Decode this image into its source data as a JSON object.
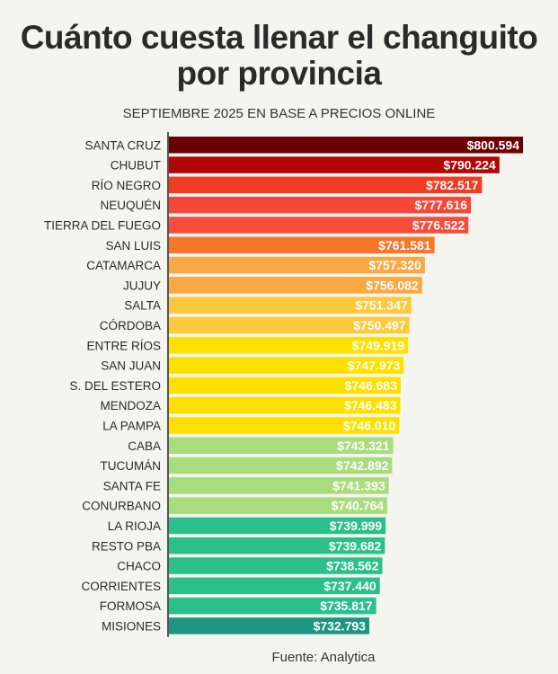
{
  "chart_data": {
    "type": "bar",
    "orientation": "horizontal",
    "title": "Cuánto cuesta llenar el changuito por provincia",
    "subtitle": "SEPTIEMBRE 2025 EN BASE A PRECIOS ONLINE",
    "source": "Fuente: Analytica",
    "categories": [
      "SANTA CRUZ",
      "CHUBUT",
      "RÍO NEGRO",
      "NEUQUÉN",
      "TIERRA DEL FUEGO",
      "SAN LUIS",
      "CATAMARCA",
      "JUJUY",
      "SALTA",
      "CÓRDOBA",
      "ENTRE RÍOS",
      "SAN JUAN",
      "S. DEL ESTERO",
      "MENDOZA",
      "LA PAMPA",
      "CABA",
      "TUCUMÁN",
      "SANTA FE",
      "CONURBANO",
      "LA RIOJA",
      "RESTO PBA",
      "CHACO",
      "CORRIENTES",
      "FORMOSA",
      "MISIONES"
    ],
    "values": [
      800594,
      790224,
      782517,
      777616,
      776522,
      761581,
      757320,
      756082,
      751347,
      750497,
      749919,
      747973,
      746683,
      746483,
      746010,
      743321,
      742892,
      741393,
      740764,
      739999,
      739682,
      738562,
      737440,
      735817,
      732793
    ],
    "labels": [
      "$800.594",
      "$790.224",
      "$782.517",
      "$777.616",
      "$776.522",
      "$761.581",
      "$757.320",
      "$756.082",
      "$751.347",
      "$750.497",
      "$749.919",
      "$747.973",
      "$746.683",
      "$746.483",
      "$746.010",
      "$743.321",
      "$742.892",
      "$741.393",
      "$740.764",
      "$739.999",
      "$739.682",
      "$738.562",
      "$737.440",
      "$735.817",
      "$732.793"
    ],
    "colors": [
      "#6b0000",
      "#b00606",
      "#f03c24",
      "#f5483a",
      "#f64c3c",
      "#f7772a",
      "#f9a843",
      "#f9a843",
      "#fdc83c",
      "#fdc83c",
      "#fde000",
      "#fde000",
      "#fde000",
      "#fde000",
      "#fde000",
      "#a8dc7c",
      "#a8dc7c",
      "#a8dc7c",
      "#a8dc7c",
      "#2bbf8c",
      "#2bbf8c",
      "#2bbf8c",
      "#2bbf8c",
      "#2bbf8c",
      "#1e9580"
    ],
    "grid": false,
    "legend": "none"
  }
}
